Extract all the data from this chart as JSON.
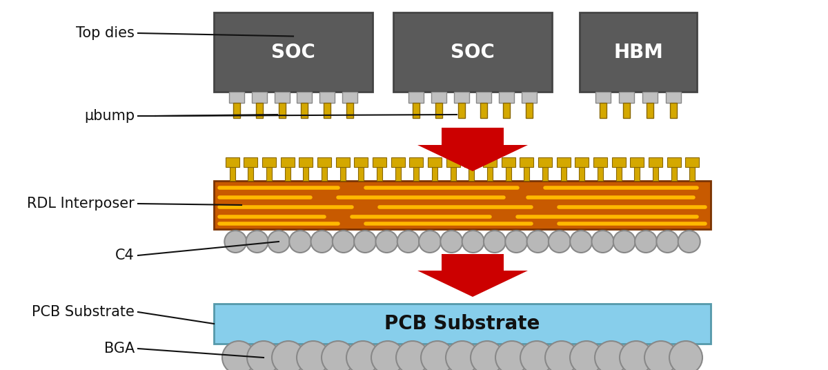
{
  "bg_color": "#ffffff",
  "die_color": "#5a5a5a",
  "die_text_color": "#ffffff",
  "bump_gold": "#D4A800",
  "bump_gray": "#c0c0c0",
  "rdl_body_color": "#C85A00",
  "rdl_line_color": "#FFB800",
  "c4_color": "#b8b8b8",
  "bga_color": "#b8b8b8",
  "pcb_color": "#87CEEB",
  "pcb_text_color": "#111111",
  "arrow_color": "#cc0000",
  "label_color": "#111111",
  "line_color": "#111111",
  "soc1_label": "SOC",
  "soc2_label": "SOC",
  "hbm_label": "HBM",
  "pcb_label": "PCB Substrate",
  "label_top_dies": "Top dies",
  "label_ubump": "μbump",
  "label_rdl": "RDL Interposer",
  "label_c4": "C4",
  "label_pcb": "PCB Substrate",
  "label_bga": "BGA",
  "fig_width": 12.0,
  "fig_height": 5.36
}
